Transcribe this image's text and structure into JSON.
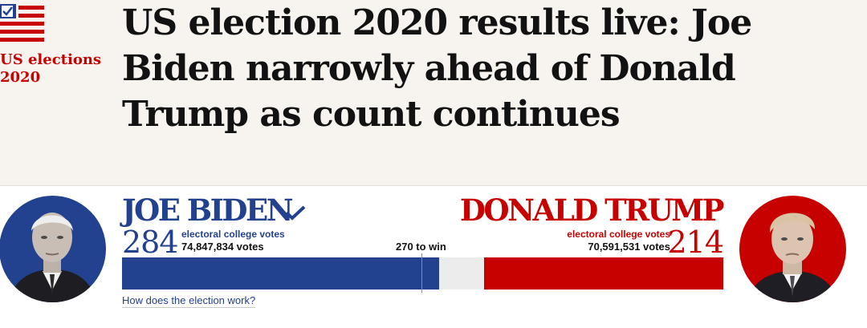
{
  "series": {
    "logo_icon": "us-flag-ballot-icon",
    "label": "US elections 2020"
  },
  "headline": "US election 2020 results live: Joe Biden narrowly ahead of Donald Trump as count continues",
  "candidates": {
    "biden": {
      "name": "JOE BIDEN",
      "electoral_votes": "284",
      "electoral_label": "electoral college votes",
      "popular_votes": "74,847,834 votes",
      "status_icon": "checkmark-icon",
      "color": "#22418e"
    },
    "trump": {
      "name": "DONALD TRUMP",
      "electoral_votes": "214",
      "electoral_label": "electoral college votes",
      "popular_votes": "70,591,531 votes",
      "color": "#c70000"
    }
  },
  "bar": {
    "to_win_label": "270 to win",
    "win_threshold": 270,
    "total_electoral_votes": 538,
    "biden_value": 284,
    "trump_value": 214
  },
  "explainer_link": "How does the election work?"
}
